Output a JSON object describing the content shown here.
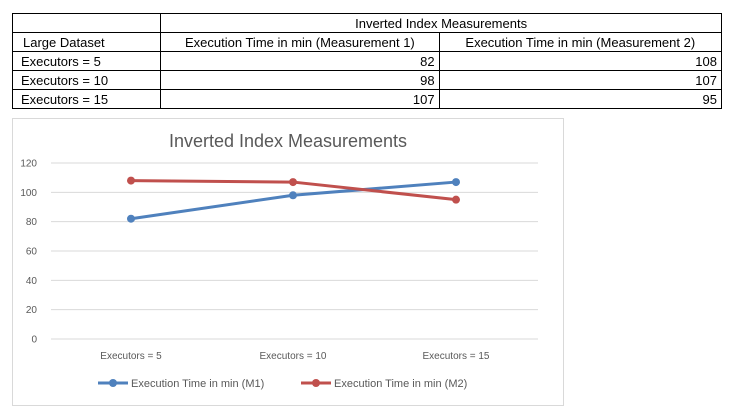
{
  "table": {
    "title": "Inverted Index Measurements",
    "headers": [
      "Large Dataset",
      "Execution Time in min (Measurement 1)",
      "Execution Time in min (Measurement 2)"
    ],
    "rows": [
      [
        "Executors = 5",
        "82",
        "108"
      ],
      [
        "Executors = 10",
        "98",
        "107"
      ],
      [
        "Executors = 15",
        "107",
        "95"
      ]
    ]
  },
  "chart_data": {
    "type": "line",
    "title": "Inverted Index Measurements",
    "xlabel": "",
    "ylabel": "",
    "categories": [
      "Executors = 5",
      "Executors = 10",
      "Executors = 15"
    ],
    "ylim": [
      0,
      120
    ],
    "yticks": [
      0,
      20,
      40,
      60,
      80,
      100,
      120
    ],
    "grid": true,
    "legend_position": "bottom",
    "series": [
      {
        "name": "Execution Time in min (M1)",
        "color": "#4f81bd",
        "values": [
          82,
          98,
          107
        ]
      },
      {
        "name": "Execution Time in min (M2)",
        "color": "#c0504d",
        "values": [
          108,
          107,
          95
        ]
      }
    ]
  }
}
